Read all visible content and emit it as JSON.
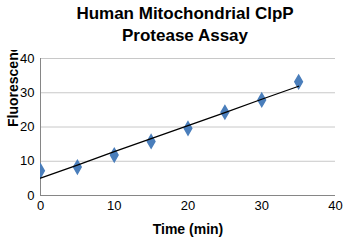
{
  "chart_data": {
    "type": "scatter",
    "title": "Human Mitochondrial ClpP\nProtease Assay",
    "x_label": "Time (min)",
    "y_label": "Fluorescence",
    "x": [
      0,
      5,
      10,
      15,
      20,
      25,
      30,
      35
    ],
    "series": [
      {
        "type": "scatter",
        "color": "#4a7ebb",
        "marker": "diamond",
        "values": [
          7.2,
          8.3,
          11.8,
          15.8,
          19.6,
          24.3,
          27.9,
          33.2
        ]
      },
      {
        "type": "line",
        "color": "#000000",
        "line_style": "solid",
        "values": [
          5.1,
          8.9,
          12.8,
          16.6,
          20.4,
          24.2,
          28.1,
          31.9
        ]
      }
    ],
    "xlim": [
      0,
      40
    ],
    "xticks": [
      0,
      10,
      20,
      30,
      40
    ],
    "ylim": [
      0,
      40
    ],
    "yticks": [
      0,
      10,
      20,
      30,
      40
    ],
    "grid": "y"
  }
}
